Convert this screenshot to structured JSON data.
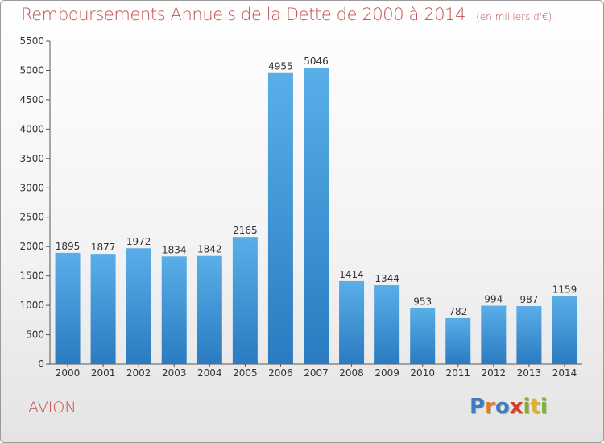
{
  "title": "Remboursements Annuels de la Dette de 2000 à 2014",
  "unit_note": "(en milliers d'€)",
  "location": "AVION",
  "brand": {
    "letters": [
      "P",
      "r",
      "o",
      "x",
      "i",
      "t",
      "i"
    ],
    "colors": [
      "#3b7dc4",
      "#e07b1d",
      "#3b7dc4",
      "#d93a2a",
      "#7bb32e",
      "#e0b21d",
      "#7bb32e"
    ]
  },
  "colors": {
    "bar_top": "#5aaee8",
    "bar_bottom": "#2a7bc0",
    "title": "#c0504d"
  },
  "chart_data": {
    "type": "bar",
    "title": "Remboursements Annuels de la Dette de 2000 à 2014",
    "xlabel": "",
    "ylabel": "",
    "ylim": [
      0,
      5500
    ],
    "yticks": [
      0,
      500,
      1000,
      1500,
      2000,
      2500,
      3000,
      3500,
      4000,
      4500,
      5000,
      5500
    ],
    "grid": false,
    "categories": [
      "2000",
      "2001",
      "2002",
      "2003",
      "2004",
      "2005",
      "2006",
      "2007",
      "2008",
      "2009",
      "2010",
      "2011",
      "2012",
      "2013",
      "2014"
    ],
    "values": [
      1895,
      1877,
      1972,
      1834,
      1842,
      2165,
      4955,
      5046,
      1414,
      1344,
      953,
      782,
      994,
      987,
      1159
    ]
  }
}
